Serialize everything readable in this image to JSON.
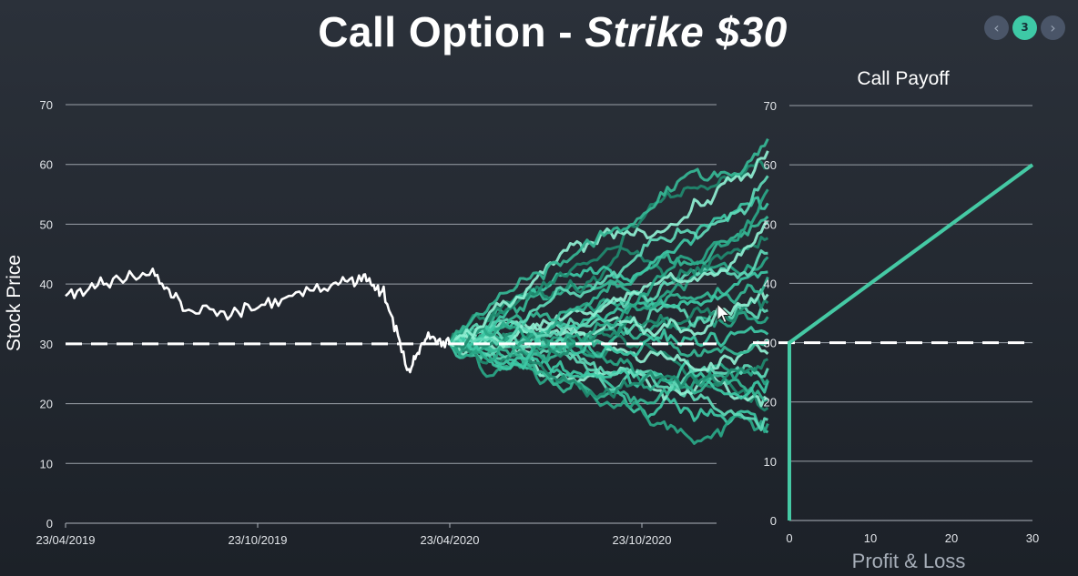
{
  "title": {
    "main": "Call Option - ",
    "emph": "Strike $30"
  },
  "pager": {
    "prev_icon": "‹",
    "current": "3",
    "next_icon": "›"
  },
  "colors": {
    "history": "#ffffff",
    "sim_palette": [
      "#3ec9a6",
      "#2aa888",
      "#5fd9b8",
      "#1f8a6f",
      "#8ff0d2",
      "#36b996"
    ],
    "payoff": "#45c9a4",
    "strike": "#ffffff"
  },
  "chart_data": [
    {
      "type": "line",
      "ylabel": "Stock Price",
      "ylim": [
        0,
        70
      ],
      "yticks": [
        "0",
        "10",
        "20",
        "30",
        "40",
        "50",
        "60",
        "70"
      ],
      "xticks": [
        "23/04/2019",
        "23/10/2019",
        "23/04/2020",
        "23/10/2020"
      ],
      "strike": 30,
      "history": {
        "x": [
          "23/04/2019",
          "01/06/2019",
          "15/07/2019",
          "15/08/2019",
          "01/10/2019",
          "15/11/2019",
          "01/01/2020",
          "01/02/2020",
          "20/02/2020",
          "15/03/2020",
          "01/04/2020",
          "23/04/2020"
        ],
        "y": [
          38,
          40.5,
          42,
          36,
          35,
          37.5,
          40,
          41,
          38.5,
          25.5,
          31,
          30
        ]
      },
      "simulations": {
        "count": 30,
        "x_start": "23/04/2020",
        "x_end": "20/02/2021",
        "start": 30,
        "range_end": [
          16,
          63.5
        ]
      }
    },
    {
      "type": "line",
      "title": "Call Payoff",
      "xlabel": "Profit & Loss",
      "ylim": [
        0,
        70
      ],
      "xlim": [
        0,
        30
      ],
      "yticks": [
        "0",
        "10",
        "20",
        "30",
        "40",
        "50",
        "60",
        "70"
      ],
      "xticks": [
        "0",
        "10",
        "20",
        "30"
      ],
      "strike": 30,
      "series": [
        {
          "x": [
            0,
            0,
            30
          ],
          "y": [
            0,
            30,
            60
          ]
        }
      ]
    }
  ]
}
